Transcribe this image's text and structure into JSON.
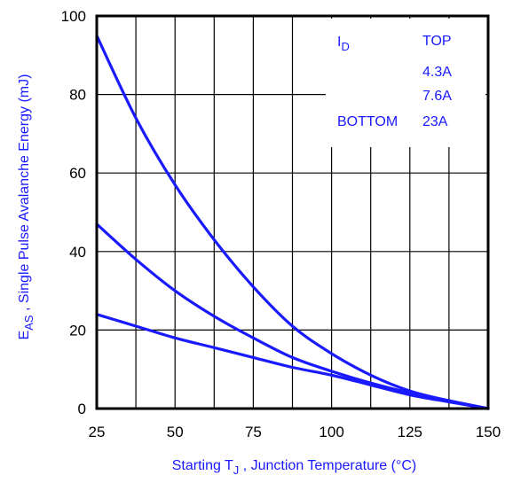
{
  "chart_data": {
    "type": "line",
    "xlabel": {
      "main": "Starting T",
      "sub": "J",
      "rest": " , Junction Temperature (°C)"
    },
    "ylabel": {
      "main": "E",
      "sub": "AS",
      "rest": " , Single Pulse Avalanche Energy (mJ)"
    },
    "xlim": [
      25,
      150
    ],
    "ylim": [
      0,
      100
    ],
    "xticks": [
      "25",
      "50",
      "75",
      "100",
      "125",
      "150"
    ],
    "yticks": [
      "0",
      "20",
      "40",
      "60",
      "80",
      "100"
    ],
    "x_gridlines": [
      25,
      37.5,
      50,
      62.5,
      75,
      87.5,
      100,
      112.5,
      125,
      137.5,
      150
    ],
    "y_gridlines": [
      0,
      20,
      40,
      60,
      80,
      100
    ],
    "grid": true,
    "legend": {
      "placement": "top-right",
      "param": "I",
      "param_sub": "D",
      "top_label": "TOP",
      "bottom_label": "BOTTOM",
      "entries": [
        "4.3A",
        "7.6A",
        "23A"
      ]
    },
    "series_color": "#1a1aff",
    "series": [
      {
        "x": [
          25,
          37.5,
          50,
          62.5,
          75,
          87.5,
          100,
          112.5,
          125,
          137.5,
          150
        ],
        "y": [
          95,
          74,
          57,
          43,
          31,
          21,
          14,
          8.5,
          4.5,
          2,
          0
        ]
      },
      {
        "x": [
          25,
          37.5,
          50,
          62.5,
          75,
          87.5,
          100,
          112.5,
          125,
          137.5,
          150
        ],
        "y": [
          47,
          38,
          30,
          23.5,
          18,
          13,
          9.5,
          6.5,
          4,
          2,
          0
        ]
      },
      {
        "x": [
          25,
          37.5,
          50,
          62.5,
          75,
          87.5,
          100,
          112.5,
          125,
          137.5,
          150
        ],
        "y": [
          24,
          21,
          18,
          15.5,
          13,
          10.5,
          8.5,
          6,
          3.5,
          1.7,
          0
        ]
      }
    ]
  }
}
